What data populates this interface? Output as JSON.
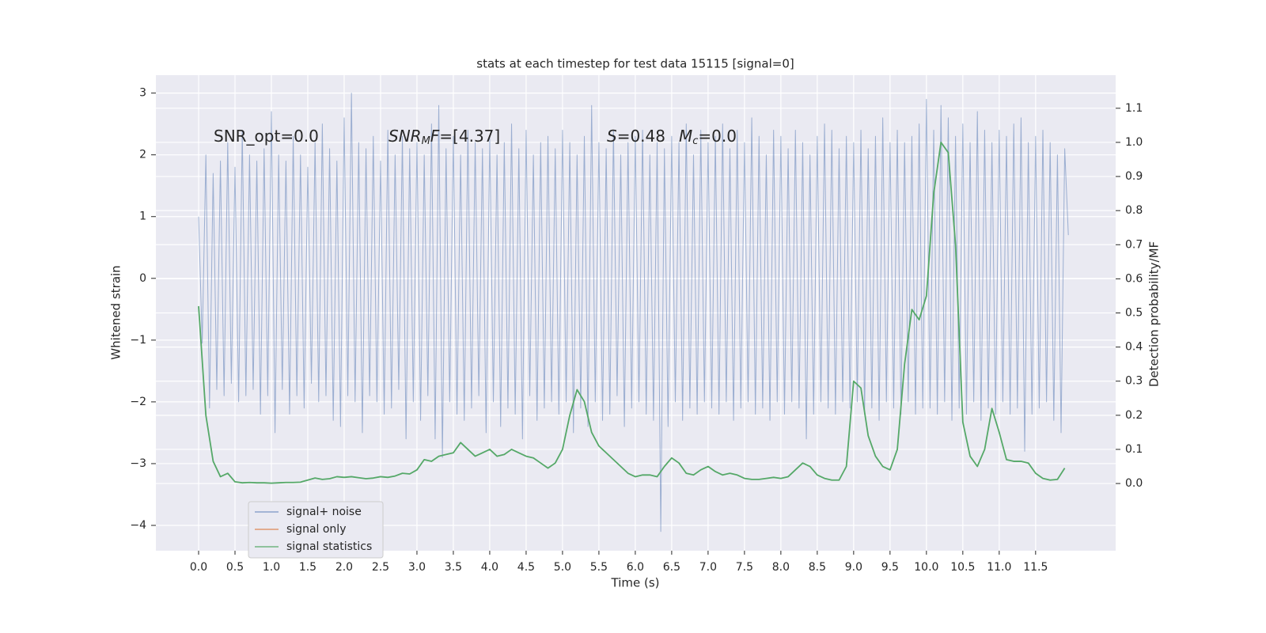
{
  "chart_data": {
    "type": "line",
    "title": "stats at each timestep for test data 15115 [signal=0]",
    "xlabel": "Time (s)",
    "ylabel": "Whitened strain",
    "y2label": "Detection probability/MF",
    "xlim": [
      -0.587,
      12.6
    ],
    "ylim": [
      -4.41,
      3.29
    ],
    "y2lim": [
      -0.197,
      1.197
    ],
    "xticks": [
      {
        "value": 0,
        "label": "0.0"
      },
      0.5,
      {
        "value": 1,
        "label": "1.0"
      },
      1.5,
      {
        "value": 2,
        "label": "2.0"
      },
      2.5,
      {
        "value": 3,
        "label": "3.0"
      },
      3.5,
      {
        "value": 4,
        "label": "4.0"
      },
      4.5,
      {
        "value": 5,
        "label": "5.0"
      },
      5.5,
      {
        "value": 6,
        "label": "6.0"
      },
      6.5,
      {
        "value": 7,
        "label": "7.0"
      },
      7.5,
      {
        "value": 8,
        "label": "8.0"
      },
      8.5,
      {
        "value": 9,
        "label": "9.0"
      },
      9.5,
      {
        "value": 10,
        "label": "10.0"
      },
      10.5,
      {
        "value": 11,
        "label": "11.0"
      },
      11.5
    ],
    "yticks": [
      {
        "value": -4,
        "label": "−4"
      },
      {
        "value": -3,
        "label": "−3"
      },
      {
        "value": -2,
        "label": "−2"
      },
      {
        "value": -1,
        "label": "−1"
      },
      0,
      1,
      2,
      3
    ],
    "y2ticks": [
      {
        "value": 0,
        "label": "0.0"
      },
      0.1,
      0.2,
      0.3,
      0.4,
      0.5,
      0.6,
      0.7,
      0.8,
      0.9,
      {
        "value": 1,
        "label": "1.0"
      },
      1.1
    ],
    "grid": true,
    "legend": "lower left",
    "annotations": [
      [
        "SNR_opt=0.0"
      ],
      [
        "SNR",
        "M",
        "F",
        "=[4.37]"
      ],
      [
        "S",
        "=0.48"
      ],
      [
        "M",
        "c",
        "=0.0"
      ]
    ],
    "annotation_styles": [
      [
        "normal"
      ],
      [
        "italic",
        "sub",
        "italic",
        "normal"
      ],
      [
        "italic",
        "normal"
      ],
      [
        "italic",
        "sub",
        "normal"
      ]
    ],
    "series": [
      {
        "name": "signal+ noise",
        "color": "#4c72b0",
        "alpha": 0.5,
        "x": [
          0,
          0.05,
          0.1,
          0.15,
          0.2,
          0.25,
          0.3,
          0.35,
          0.4,
          0.45,
          0.5,
          0.55,
          0.6,
          0.65,
          0.7,
          0.75,
          0.8,
          0.85,
          0.9,
          0.95,
          1,
          1.05,
          1.1,
          1.15,
          1.2,
          1.25,
          1.3,
          1.35,
          1.4,
          1.45,
          1.5,
          1.55,
          1.6,
          1.65,
          1.7,
          1.75,
          1.8,
          1.85,
          1.9,
          1.95,
          2,
          2.05,
          2.1,
          2.15,
          2.2,
          2.25,
          2.3,
          2.35,
          2.4,
          2.45,
          2.5,
          2.55,
          2.6,
          2.65,
          2.7,
          2.75,
          2.8,
          2.85,
          2.9,
          2.95,
          3,
          3.05,
          3.1,
          3.15,
          3.2,
          3.25,
          3.3,
          3.35,
          3.4,
          3.45,
          3.5,
          3.55,
          3.6,
          3.65,
          3.7,
          3.75,
          3.8,
          3.85,
          3.9,
          3.95,
          4,
          4.05,
          4.1,
          4.15,
          4.2,
          4.25,
          4.3,
          4.35,
          4.4,
          4.45,
          4.5,
          4.55,
          4.6,
          4.65,
          4.7,
          4.75,
          4.8,
          4.85,
          4.9,
          4.95,
          5,
          5.05,
          5.1,
          5.15,
          5.2,
          5.25,
          5.3,
          5.35,
          5.4,
          5.45,
          5.5,
          5.55,
          5.6,
          5.65,
          5.7,
          5.75,
          5.8,
          5.85,
          5.9,
          5.95,
          6,
          6.05,
          6.1,
          6.15,
          6.2,
          6.25,
          6.3,
          6.35,
          6.4,
          6.45,
          6.5,
          6.55,
          6.6,
          6.65,
          6.7,
          6.75,
          6.8,
          6.85,
          6.9,
          6.95,
          7,
          7.05,
          7.1,
          7.15,
          7.2,
          7.25,
          7.3,
          7.35,
          7.4,
          7.45,
          7.5,
          7.55,
          7.6,
          7.65,
          7.7,
          7.75,
          7.8,
          7.85,
          7.9,
          7.95,
          8,
          8.05,
          8.1,
          8.15,
          8.2,
          8.25,
          8.3,
          8.35,
          8.4,
          8.45,
          8.5,
          8.55,
          8.6,
          8.65,
          8.7,
          8.75,
          8.8,
          8.85,
          8.9,
          8.95,
          9,
          9.05,
          9.1,
          9.15,
          9.2,
          9.25,
          9.3,
          9.35,
          9.4,
          9.45,
          9.5,
          9.55,
          9.6,
          9.65,
          9.7,
          9.75,
          9.8,
          9.85,
          9.9,
          9.95,
          10,
          10.05,
          10.1,
          10.15,
          10.2,
          10.25,
          10.3,
          10.35,
          10.4,
          10.45,
          10.5,
          10.55,
          10.6,
          10.65,
          10.7,
          10.75,
          10.8,
          10.85,
          10.9,
          10.95,
          11,
          11.05,
          11.1,
          11.15,
          11.2,
          11.25,
          11.3,
          11.35,
          11.4,
          11.45,
          11.5,
          11.55,
          11.6,
          11.65,
          11.7,
          11.75,
          11.8,
          11.85,
          11.9,
          11.95
        ],
        "values": [
          1.0,
          -1.05,
          2.0,
          -2.1,
          1.7,
          -1.8,
          1.9,
          -1.9,
          2.2,
          -1.7,
          1.8,
          -2.0,
          2.4,
          -1.9,
          2.0,
          -1.8,
          1.9,
          -2.2,
          2.1,
          -1.9,
          2.7,
          -2.5,
          2.0,
          -1.8,
          1.9,
          -2.2,
          2.3,
          -1.9,
          2.0,
          -2.1,
          1.8,
          -1.7,
          2.2,
          -2.0,
          2.5,
          -1.9,
          2.1,
          -2.3,
          1.9,
          -2.4,
          2.6,
          -1.9,
          3.0,
          -2.0,
          2.2,
          -2.5,
          2.1,
          -1.9,
          2.3,
          -2.0,
          1.9,
          -2.2,
          2.4,
          -2.1,
          2.0,
          -1.8,
          2.3,
          -2.6,
          2.1,
          -2.0,
          2.2,
          -2.3,
          2.0,
          -1.9,
          2.5,
          -2.6,
          2.8,
          -2.9,
          2.1,
          -2.0,
          2.3,
          -2.2,
          2.0,
          -2.3,
          2.4,
          -2.1,
          2.2,
          -1.9,
          2.1,
          -2.5,
          2.3,
          -2.0,
          2.0,
          -2.4,
          2.2,
          -2.1,
          2.5,
          -2.2,
          2.1,
          -2.6,
          2.4,
          -1.9,
          2.0,
          -2.3,
          2.2,
          -2.1,
          2.3,
          -2.0,
          2.1,
          -2.2,
          2.4,
          -2.0,
          2.2,
          -2.5,
          2.0,
          -2.1,
          2.3,
          -2.4,
          2.8,
          -2.0,
          2.2,
          -2.3,
          2.1,
          -2.2,
          2.4,
          -1.9,
          2.0,
          -2.4,
          2.2,
          -2.1,
          2.3,
          -2.0,
          2.4,
          -2.2,
          2.0,
          -2.3,
          2.2,
          -4.1,
          2.1,
          -2.4,
          2.3,
          -2.0,
          2.2,
          -2.3,
          2.5,
          -2.1,
          2.0,
          -2.2,
          2.4,
          -2.0,
          2.2,
          -2.1,
          2.3,
          -2.2,
          2.5,
          -2.0,
          2.1,
          -2.3,
          2.4,
          -2.1,
          2.2,
          -2.0,
          2.6,
          -2.2,
          2.3,
          -2.1,
          2.0,
          -2.3,
          2.4,
          -2.0,
          2.3,
          -2.2,
          2.1,
          -2.0,
          2.4,
          -2.1,
          2.2,
          -2.6,
          2.0,
          -2.2,
          2.3,
          -2.0,
          2.5,
          -2.1,
          2.4,
          -2.2,
          2.1,
          -2.0,
          2.3,
          -2.1,
          2.2,
          -2.0,
          2.4,
          -2.2,
          2.1,
          -2.1,
          2.3,
          -2.3,
          2.6,
          -2.0,
          2.2,
          -2.1,
          2.4,
          -2.2,
          2.2,
          -2.0,
          2.3,
          -2.2,
          2.5,
          -2.1,
          2.9,
          -2.1,
          2.4,
          -2.2,
          2.8,
          -2.0,
          2.6,
          -2.3,
          2.3,
          -2.1,
          2.5,
          -2.2,
          2.2,
          -2.0,
          2.7,
          -2.3,
          2.4,
          -2.1,
          2.2,
          -2.2,
          2.4,
          -2.0,
          2.3,
          -2.2,
          2.5,
          -2.1,
          2.6,
          -2.8,
          2.2,
          -2.2,
          2.3,
          -2.1,
          2.4,
          -2.0,
          2.2,
          -2.3,
          2.0,
          -2.5,
          2.1,
          0.7
        ]
      },
      {
        "name": "signal only",
        "color": "#dd8452",
        "x": [],
        "values": []
      },
      {
        "name": "signal statistics",
        "color": "#55a868",
        "axis": "y2",
        "x": [
          0,
          0.1,
          0.2,
          0.3,
          0.4,
          0.5,
          0.6,
          0.7,
          0.8,
          0.9,
          1,
          1.1,
          1.2,
          1.3,
          1.4,
          1.5,
          1.6,
          1.7,
          1.8,
          1.9,
          2,
          2.1,
          2.2,
          2.3,
          2.4,
          2.5,
          2.6,
          2.7,
          2.8,
          2.9,
          3,
          3.1,
          3.2,
          3.3,
          3.4,
          3.5,
          3.6,
          3.7,
          3.8,
          3.9,
          4,
          4.1,
          4.2,
          4.3,
          4.4,
          4.5,
          4.6,
          4.7,
          4.8,
          4.9,
          5,
          5.1,
          5.2,
          5.3,
          5.4,
          5.5,
          5.6,
          5.7,
          5.8,
          5.9,
          6,
          6.1,
          6.2,
          6.3,
          6.4,
          6.5,
          6.6,
          6.7,
          6.8,
          6.9,
          7,
          7.1,
          7.2,
          7.3,
          7.4,
          7.5,
          7.6,
          7.7,
          7.8,
          7.9,
          8,
          8.1,
          8.2,
          8.3,
          8.4,
          8.5,
          8.6,
          8.7,
          8.8,
          8.9,
          9,
          9.1,
          9.2,
          9.3,
          9.4,
          9.5,
          9.6,
          9.7,
          9.8,
          9.9,
          10,
          10.1,
          10.2,
          10.3,
          10.4,
          10.5,
          10.6,
          10.7,
          10.8,
          10.9,
          11,
          11.1,
          11.2,
          11.3,
          11.4,
          11.5,
          11.6,
          11.7,
          11.8,
          11.9
        ],
        "values": [
          0.52,
          0.2,
          0.065,
          0.02,
          0.03,
          0.005,
          0.002,
          0.003,
          0.002,
          0.002,
          0.001,
          0.002,
          0.003,
          0.003,
          0.004,
          0.01,
          0.016,
          0.012,
          0.014,
          0.02,
          0.018,
          0.02,
          0.017,
          0.014,
          0.016,
          0.02,
          0.018,
          0.022,
          0.03,
          0.028,
          0.04,
          0.07,
          0.065,
          0.08,
          0.085,
          0.09,
          0.12,
          0.1,
          0.08,
          0.09,
          0.1,
          0.08,
          0.085,
          0.1,
          0.09,
          0.08,
          0.075,
          0.06,
          0.045,
          0.06,
          0.1,
          0.2,
          0.275,
          0.24,
          0.15,
          0.11,
          0.09,
          0.07,
          0.05,
          0.03,
          0.02,
          0.025,
          0.025,
          0.02,
          0.05,
          0.075,
          0.06,
          0.03,
          0.025,
          0.04,
          0.05,
          0.035,
          0.025,
          0.03,
          0.025,
          0.015,
          0.012,
          0.012,
          0.015,
          0.018,
          0.015,
          0.02,
          0.04,
          0.06,
          0.05,
          0.025,
          0.015,
          0.01,
          0.01,
          0.05,
          0.3,
          0.28,
          0.14,
          0.08,
          0.05,
          0.04,
          0.1,
          0.35,
          0.51,
          0.48,
          0.55,
          0.85,
          1.0,
          0.97,
          0.7,
          0.18,
          0.08,
          0.05,
          0.1,
          0.22,
          0.15,
          0.07,
          0.065,
          0.065,
          0.06,
          0.03,
          0.015,
          0.01,
          0.012,
          0.045
        ]
      }
    ]
  }
}
